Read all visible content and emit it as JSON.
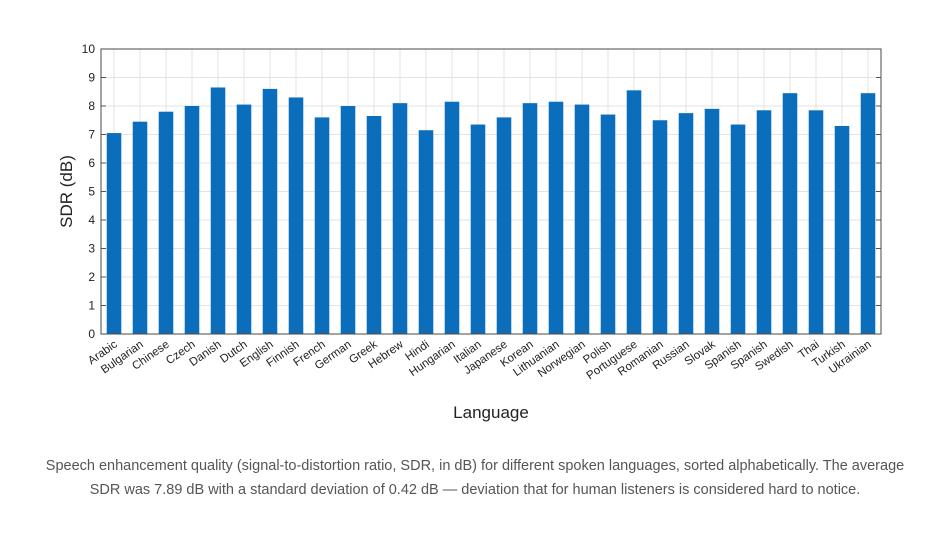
{
  "chart_data": {
    "type": "bar",
    "title": "",
    "xlabel": "Language",
    "ylabel": "SDR (dB)",
    "ylim": [
      0,
      10
    ],
    "yticks": [
      0,
      1,
      2,
      3,
      4,
      5,
      6,
      7,
      8,
      9,
      10
    ],
    "grid": true,
    "bar_color": "#0a6ebd",
    "categories": [
      "Arabic",
      "Bulgarian",
      "Chinese",
      "Czech",
      "Danish",
      "Dutch",
      "English",
      "Finnish",
      "French",
      "German",
      "Greek",
      "Hebrew",
      "Hindi",
      "Hungarian",
      "Italian",
      "Japanese",
      "Korean",
      "Lithuanian",
      "Norwegian",
      "Polish",
      "Portuguese",
      "Romanian",
      "Russian",
      "Slovak",
      "Spanish",
      "Spanish",
      "Swedish",
      "Thai",
      "Turkish",
      "Ukrainian"
    ],
    "values": [
      7.05,
      7.45,
      7.8,
      8.0,
      8.65,
      8.05,
      8.6,
      8.3,
      7.6,
      8.0,
      7.65,
      8.1,
      7.15,
      8.15,
      7.35,
      7.6,
      8.1,
      8.15,
      8.05,
      7.7,
      8.55,
      7.5,
      7.75,
      7.9,
      7.35,
      7.85,
      8.45,
      7.85,
      7.3,
      8.45
    ]
  },
  "caption": "Speech enhancement quality (signal-to-distortion ratio, SDR, in dB) for different spoken languages, sorted alphabetically. The average SDR was 7.89 dB with a standard deviation of 0.42 dB — deviation that for human listeners is considered hard to notice."
}
